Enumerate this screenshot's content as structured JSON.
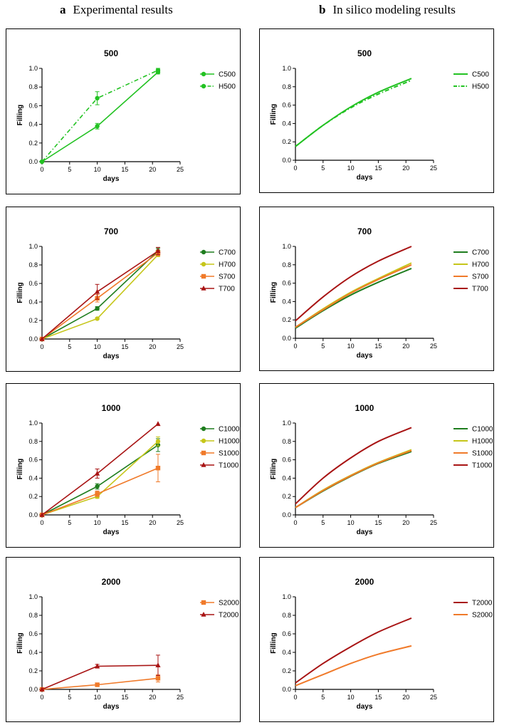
{
  "headers": {
    "left": {
      "letter": "a",
      "text": "Experimental results"
    },
    "right": {
      "letter": "b",
      "text": "In silico modeling results"
    }
  },
  "chart_data": [
    {
      "id": "exp-500",
      "type": "line",
      "title": "500",
      "xlabel": "days",
      "ylabel": "Filling",
      "xlim": [
        0,
        25
      ],
      "ylim": [
        0,
        1.0
      ],
      "xticks": [
        0,
        5,
        10,
        15,
        20,
        25
      ],
      "yticks": [
        0.0,
        0.2,
        0.4,
        0.6,
        0.8,
        1.0
      ],
      "grid": false,
      "legend": "right",
      "series": [
        {
          "name": "C500",
          "color": "#22c222",
          "marker": "circle",
          "dash": "solid",
          "x": [
            0,
            10,
            21
          ],
          "y": [
            0,
            0.38,
            0.96
          ],
          "err": [
            0,
            0.03,
            0.02
          ]
        },
        {
          "name": "H500",
          "color": "#22c222",
          "marker": "circle",
          "dash": "dashdot",
          "x": [
            0,
            10,
            21
          ],
          "y": [
            0,
            0.68,
            0.98
          ],
          "err": [
            0,
            0.07,
            0.02
          ]
        }
      ]
    },
    {
      "id": "sim-500",
      "type": "line",
      "title": "500",
      "xlabel": "days",
      "ylabel": "Filling",
      "xlim": [
        0,
        25
      ],
      "ylim": [
        0,
        1.0
      ],
      "xticks": [
        0,
        5,
        10,
        15,
        20,
        25
      ],
      "yticks": [
        0.0,
        0.2,
        0.4,
        0.6,
        0.8,
        1.0
      ],
      "grid": false,
      "legend": "right",
      "series": [
        {
          "name": "C500",
          "color": "#22c222",
          "marker": "none",
          "dash": "solid",
          "x": [
            0,
            5,
            10,
            15,
            21
          ],
          "y": [
            0.15,
            0.38,
            0.58,
            0.74,
            0.89
          ]
        },
        {
          "name": "H500",
          "color": "#22c222",
          "marker": "none",
          "dash": "dashdot",
          "x": [
            0,
            5,
            10,
            15,
            21
          ],
          "y": [
            0.15,
            0.38,
            0.57,
            0.72,
            0.87
          ]
        }
      ]
    },
    {
      "id": "exp-700",
      "type": "line",
      "title": "700",
      "xlabel": "days",
      "ylabel": "Filling",
      "xlim": [
        0,
        25
      ],
      "ylim": [
        0,
        1.0
      ],
      "xticks": [
        0,
        5,
        10,
        15,
        20,
        25
      ],
      "yticks": [
        0.0,
        0.2,
        0.4,
        0.6,
        0.8,
        1.0
      ],
      "grid": false,
      "legend": "right",
      "series": [
        {
          "name": "C700",
          "color": "#1e7d1e",
          "marker": "circle",
          "dash": "solid",
          "x": [
            0,
            10,
            21
          ],
          "y": [
            0,
            0.33,
            0.95
          ],
          "err": [
            0,
            0.02,
            0.03
          ]
        },
        {
          "name": "H700",
          "color": "#c6c61a",
          "marker": "circle",
          "dash": "solid",
          "x": [
            0,
            10,
            21
          ],
          "y": [
            0,
            0.22,
            0.91
          ],
          "err": [
            0,
            0.01,
            0.02
          ]
        },
        {
          "name": "S700",
          "color": "#f07a2a",
          "marker": "square",
          "dash": "solid",
          "x": [
            0,
            10,
            21
          ],
          "y": [
            0,
            0.44,
            0.93
          ],
          "err": [
            0,
            0.04,
            0.03
          ]
        },
        {
          "name": "T700",
          "color": "#a81414",
          "marker": "triangle",
          "dash": "solid",
          "x": [
            0,
            10,
            21
          ],
          "y": [
            0,
            0.51,
            0.95
          ],
          "err": [
            0,
            0.08,
            0.04
          ]
        }
      ]
    },
    {
      "id": "sim-700",
      "type": "line",
      "title": "700",
      "xlabel": "days",
      "ylabel": "Filling",
      "xlim": [
        0,
        25
      ],
      "ylim": [
        0,
        1.0
      ],
      "xticks": [
        0,
        5,
        10,
        15,
        20,
        25
      ],
      "yticks": [
        0.0,
        0.2,
        0.4,
        0.6,
        0.8,
        1.0
      ],
      "grid": false,
      "legend": "right",
      "series": [
        {
          "name": "C700",
          "color": "#1e7d1e",
          "marker": "none",
          "dash": "solid",
          "x": [
            0,
            5,
            10,
            15,
            21
          ],
          "y": [
            0.11,
            0.3,
            0.47,
            0.61,
            0.76
          ]
        },
        {
          "name": "H700",
          "color": "#c6c61a",
          "marker": "none",
          "dash": "solid",
          "x": [
            0,
            5,
            10,
            15,
            21
          ],
          "y": [
            0.12,
            0.32,
            0.5,
            0.65,
            0.82
          ]
        },
        {
          "name": "S700",
          "color": "#f07a2a",
          "marker": "none",
          "dash": "solid",
          "x": [
            0,
            5,
            10,
            15,
            21
          ],
          "y": [
            0.12,
            0.31,
            0.49,
            0.64,
            0.8
          ]
        },
        {
          "name": "T700",
          "color": "#a81414",
          "marker": "none",
          "dash": "solid",
          "x": [
            0,
            5,
            10,
            15,
            21
          ],
          "y": [
            0.19,
            0.45,
            0.67,
            0.84,
            1.0
          ]
        }
      ]
    },
    {
      "id": "exp-1000",
      "type": "line",
      "title": "1000",
      "xlabel": "days",
      "ylabel": "Filling",
      "xlim": [
        0,
        25
      ],
      "ylim": [
        0,
        1.0
      ],
      "xticks": [
        0,
        5,
        10,
        15,
        20,
        25
      ],
      "yticks": [
        0.0,
        0.2,
        0.4,
        0.6,
        0.8,
        1.0
      ],
      "grid": false,
      "legend": "right",
      "series": [
        {
          "name": "C1000",
          "color": "#1e7d1e",
          "marker": "circle",
          "dash": "solid",
          "x": [
            0,
            10,
            21
          ],
          "y": [
            0,
            0.31,
            0.76
          ],
          "err": [
            0,
            0.03,
            0.07
          ]
        },
        {
          "name": "H1000",
          "color": "#c6c61a",
          "marker": "circle",
          "dash": "solid",
          "x": [
            0,
            10,
            21
          ],
          "y": [
            0,
            0.2,
            0.8
          ],
          "err": [
            0,
            0.02,
            0.05
          ]
        },
        {
          "name": "S1000",
          "color": "#f07a2a",
          "marker": "square",
          "dash": "solid",
          "x": [
            0,
            10,
            21
          ],
          "y": [
            0,
            0.23,
            0.51
          ],
          "err": [
            0,
            0.03,
            0.15
          ]
        },
        {
          "name": "T1000",
          "color": "#a81414",
          "marker": "triangle",
          "dash": "solid",
          "x": [
            0,
            10,
            21
          ],
          "y": [
            0,
            0.45,
            0.99
          ],
          "err": [
            0,
            0.05,
            0
          ]
        }
      ]
    },
    {
      "id": "sim-1000",
      "type": "line",
      "title": "1000",
      "xlabel": "days",
      "ylabel": "Filling",
      "xlim": [
        0,
        25
      ],
      "ylim": [
        0,
        1.0
      ],
      "xticks": [
        0,
        5,
        10,
        15,
        20,
        25
      ],
      "yticks": [
        0.0,
        0.2,
        0.4,
        0.6,
        0.8,
        1.0
      ],
      "grid": false,
      "legend": "right",
      "series": [
        {
          "name": "C1000",
          "color": "#1e7d1e",
          "marker": "none",
          "dash": "solid",
          "x": [
            0,
            5,
            10,
            15,
            21
          ],
          "y": [
            0.08,
            0.26,
            0.42,
            0.56,
            0.69
          ]
        },
        {
          "name": "H1000",
          "color": "#c6c61a",
          "marker": "none",
          "dash": "solid",
          "x": [
            0,
            5,
            10,
            15,
            21
          ],
          "y": [
            0.08,
            0.27,
            0.43,
            0.57,
            0.71
          ]
        },
        {
          "name": "S1000",
          "color": "#f07a2a",
          "marker": "none",
          "dash": "solid",
          "x": [
            0,
            5,
            10,
            15,
            21
          ],
          "y": [
            0.08,
            0.265,
            0.425,
            0.565,
            0.7
          ]
        },
        {
          "name": "T1000",
          "color": "#a81414",
          "marker": "none",
          "dash": "solid",
          "x": [
            0,
            5,
            10,
            15,
            21
          ],
          "y": [
            0.12,
            0.4,
            0.62,
            0.8,
            0.95
          ]
        }
      ]
    },
    {
      "id": "exp-2000",
      "type": "line",
      "title": "2000",
      "xlabel": "days",
      "ylabel": "Filling",
      "xlim": [
        0,
        25
      ],
      "ylim": [
        0,
        1.0
      ],
      "xticks": [
        0,
        5,
        10,
        15,
        20,
        25
      ],
      "yticks": [
        0.0,
        0.2,
        0.4,
        0.6,
        0.8,
        1.0
      ],
      "grid": false,
      "legend": "right",
      "series": [
        {
          "name": "S2000",
          "color": "#f07a2a",
          "marker": "square",
          "dash": "solid",
          "x": [
            0,
            10,
            21
          ],
          "y": [
            0,
            0.05,
            0.12
          ],
          "err": [
            0,
            0.01,
            0.04
          ]
        },
        {
          "name": "T2000",
          "color": "#a81414",
          "marker": "triangle",
          "dash": "solid",
          "x": [
            0,
            10,
            21
          ],
          "y": [
            0,
            0.25,
            0.26
          ],
          "err": [
            0,
            0.02,
            0.11
          ]
        }
      ]
    },
    {
      "id": "sim-2000",
      "type": "line",
      "title": "2000",
      "xlabel": "days",
      "ylabel": "Filling",
      "xlim": [
        0,
        25
      ],
      "ylim": [
        0,
        1.0
      ],
      "xticks": [
        0,
        5,
        10,
        15,
        20,
        25
      ],
      "yticks": [
        0.0,
        0.2,
        0.4,
        0.6,
        0.8,
        1.0
      ],
      "grid": false,
      "legend": "right",
      "series": [
        {
          "name": "T2000",
          "color": "#a81414",
          "marker": "none",
          "dash": "solid",
          "x": [
            0,
            5,
            10,
            15,
            21
          ],
          "y": [
            0.07,
            0.28,
            0.46,
            0.62,
            0.77
          ]
        },
        {
          "name": "S2000",
          "color": "#f07a2a",
          "marker": "none",
          "dash": "solid",
          "x": [
            0,
            5,
            10,
            15,
            21
          ],
          "y": [
            0.04,
            0.16,
            0.28,
            0.38,
            0.47
          ]
        }
      ]
    }
  ]
}
